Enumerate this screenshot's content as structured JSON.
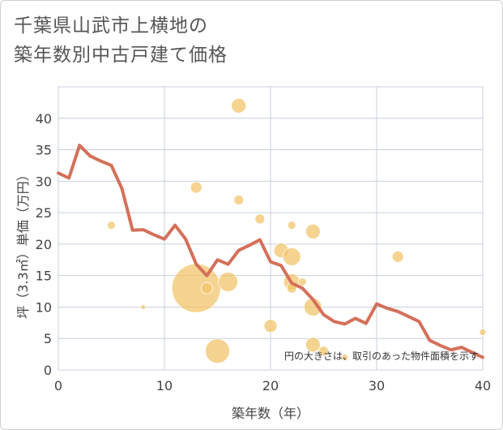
{
  "chart_data": {
    "type": "scatter",
    "title_lines": [
      "千葉県山武市上横地の",
      "築年数別中古戸建て価格"
    ],
    "xlabel": "築年数（年）",
    "ylabel": "坪（3.3㎡）単価（万円）",
    "xlim": [
      0,
      40
    ],
    "ylim": [
      0,
      45
    ],
    "x_ticks": [
      0,
      10,
      20,
      30,
      40
    ],
    "y_ticks": [
      0,
      5,
      10,
      15,
      20,
      25,
      30,
      35,
      40
    ],
    "grid": true,
    "note": "円の大きさは、取引のあった物件面積を示す",
    "colors": {
      "bubble": "#f2c46b",
      "line": "#d4705a",
      "grid": "#c8d0dc"
    },
    "bubbles": [
      {
        "x": 5,
        "y": 23,
        "size": 5
      },
      {
        "x": 8,
        "y": 10,
        "size": 3
      },
      {
        "x": 13,
        "y": 29,
        "size": 7
      },
      {
        "x": 13,
        "y": 13,
        "size": 30
      },
      {
        "x": 14,
        "y": 13,
        "size": 7
      },
      {
        "x": 15,
        "y": 3,
        "size": 15
      },
      {
        "x": 16,
        "y": 14,
        "size": 12
      },
      {
        "x": 17,
        "y": 42,
        "size": 9
      },
      {
        "x": 17,
        "y": 27,
        "size": 6
      },
      {
        "x": 19,
        "y": 24,
        "size": 6
      },
      {
        "x": 20,
        "y": 7,
        "size": 8
      },
      {
        "x": 21,
        "y": 19,
        "size": 9
      },
      {
        "x": 22,
        "y": 23,
        "size": 5
      },
      {
        "x": 22,
        "y": 18,
        "size": 11
      },
      {
        "x": 22,
        "y": 14,
        "size": 10
      },
      {
        "x": 22,
        "y": 13,
        "size": 6
      },
      {
        "x": 23,
        "y": 14,
        "size": 5
      },
      {
        "x": 24,
        "y": 22,
        "size": 9
      },
      {
        "x": 24,
        "y": 10,
        "size": 11
      },
      {
        "x": 24,
        "y": 4,
        "size": 9
      },
      {
        "x": 25,
        "y": 3,
        "size": 6
      },
      {
        "x": 27,
        "y": 2,
        "size": 4
      },
      {
        "x": 32,
        "y": 18,
        "size": 7
      },
      {
        "x": 40,
        "y": 6,
        "size": 4
      }
    ],
    "line": {
      "x": [
        0,
        1,
        2,
        3,
        4,
        5,
        6,
        7,
        8,
        9,
        10,
        11,
        12,
        13,
        14,
        15,
        16,
        17,
        18,
        19,
        20,
        21,
        22,
        23,
        24,
        25,
        26,
        27,
        28,
        29,
        30,
        31,
        32,
        33,
        34,
        35,
        36,
        37,
        38,
        39,
        40
      ],
      "y": [
        31.3,
        30.5,
        35.7,
        34,
        33.2,
        32.5,
        28.8,
        22.2,
        22.3,
        21.5,
        20.8,
        23,
        20.8,
        16.8,
        15,
        17.5,
        16.8,
        19,
        19.8,
        20.7,
        17.2,
        16.6,
        13.8,
        13,
        11.2,
        8.8,
        7.7,
        7.3,
        8.2,
        7.4,
        10.5,
        9.8,
        9.3,
        8.5,
        7.7,
        4.7,
        3.9,
        3.2,
        3.6,
        2.8,
        2
      ]
    }
  }
}
